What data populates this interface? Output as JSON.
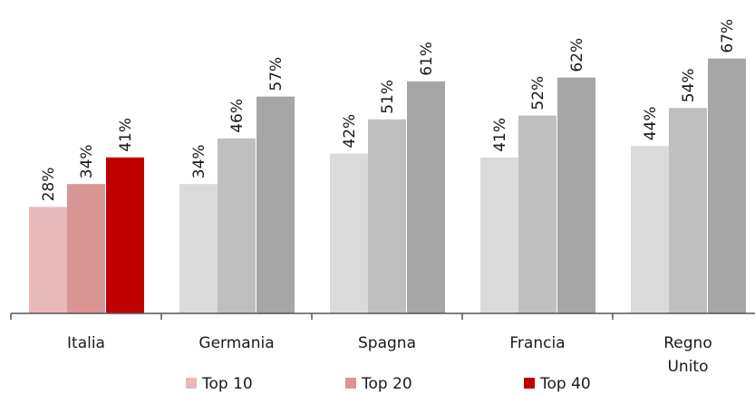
{
  "chart_data": {
    "type": "bar",
    "title": "",
    "xlabel": "",
    "ylabel": "",
    "ylim": [
      0,
      80
    ],
    "grid": false,
    "legend_position": "bottom",
    "categories": [
      "Italia",
      "Germania",
      "Spagna",
      "Francia",
      "Regno Unito"
    ],
    "category_lines": [
      [
        "Italia"
      ],
      [
        "Germania"
      ],
      [
        "Spagna"
      ],
      [
        "Francia"
      ],
      [
        "Regno",
        "Unito"
      ]
    ],
    "series": [
      {
        "name": "Top 10",
        "values": [
          28,
          34,
          42,
          41,
          44
        ],
        "value_labels": [
          "28%",
          "34%",
          "42%",
          "41%",
          "44%"
        ]
      },
      {
        "name": "Top 20",
        "values": [
          34,
          46,
          51,
          52,
          54
        ],
        "value_labels": [
          "34%",
          "46%",
          "51%",
          "52%",
          "54%"
        ]
      },
      {
        "name": "Top 40",
        "values": [
          41,
          57,
          61,
          62,
          67
        ],
        "value_labels": [
          "41%",
          "57%",
          "61%",
          "62%",
          "67%"
        ]
      }
    ],
    "colors": {
      "highlight_category": "Italia",
      "highlight_series": [
        "#e8b9b9",
        "#d99694",
        "#c00000"
      ],
      "other_series": [
        "#dadada",
        "#bfbfbf",
        "#a6a6a6"
      ],
      "legend": [
        "#e8b9b9",
        "#d99694",
        "#c00000"
      ],
      "axis": "#555555"
    }
  }
}
